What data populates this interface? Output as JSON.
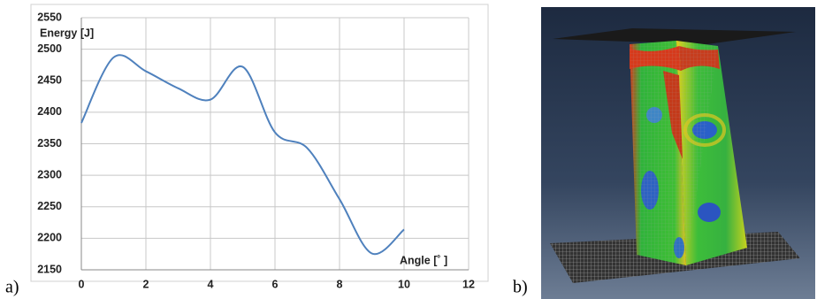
{
  "chart_data": {
    "type": "line",
    "ylabel": "Energy [J]",
    "xlabel": "Angle [˚ ]",
    "x": [
      0,
      1,
      2,
      3,
      4,
      5,
      6,
      7,
      8,
      9,
      10
    ],
    "values": [
      2383,
      2487,
      2465,
      2438,
      2420,
      2472,
      2368,
      2343,
      2262,
      2176,
      2214
    ],
    "color": "#4f81bd",
    "xlim": [
      0,
      12
    ],
    "xticks": [
      0,
      2,
      4,
      6,
      8,
      10,
      12
    ],
    "ylim": [
      2150,
      2550
    ],
    "yticks": [
      2150,
      2200,
      2250,
      2300,
      2350,
      2400,
      2450,
      2500,
      2550
    ],
    "grid": true
  },
  "panel_labels": [
    "a)",
    "b)"
  ]
}
